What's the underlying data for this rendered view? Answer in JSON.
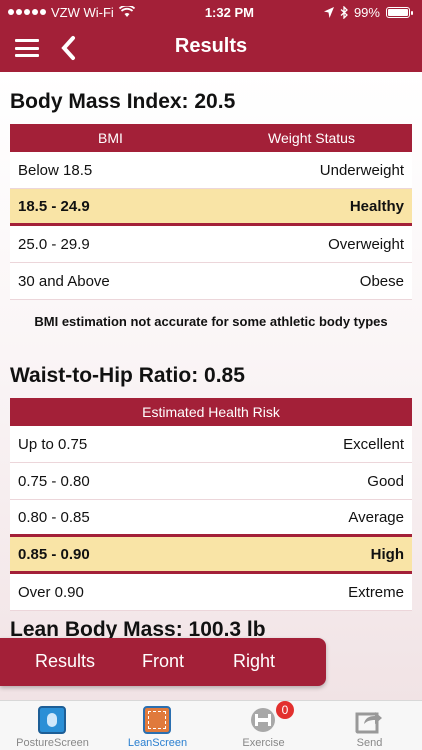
{
  "status_bar": {
    "carrier": "VZW Wi-Fi",
    "time": "1:32 PM",
    "battery": "99%"
  },
  "nav": {
    "title": "Results"
  },
  "bmi": {
    "title": "Body Mass Index: 20.5",
    "col_bmi": "BMI",
    "col_status": "Weight Status",
    "rows": [
      {
        "range": "Below 18.5",
        "status": "Underweight"
      },
      {
        "range": "18.5 - 24.9",
        "status": "Healthy"
      },
      {
        "range": "25.0 - 29.9",
        "status": "Overweight"
      },
      {
        "range": "30 and Above",
        "status": "Obese"
      }
    ],
    "note": "BMI estimation not accurate for some athletic body types"
  },
  "whr": {
    "title": "Waist-to-Hip Ratio: 0.85",
    "header": "Estimated Health Risk",
    "rows": [
      {
        "range": "Up to 0.75",
        "risk": "Excellent"
      },
      {
        "range": "0.75 - 0.80",
        "risk": "Good"
      },
      {
        "range": "0.80 - 0.85",
        "risk": "Average"
      },
      {
        "range": "0.85 - 0.90",
        "risk": "High"
      },
      {
        "range": "Over 0.90",
        "risk": "Extreme"
      }
    ]
  },
  "lean": {
    "title": "Lean Body Mass: 100.3 lb"
  },
  "segment": {
    "results": "Results",
    "front": "Front",
    "right": "Right"
  },
  "tabs": [
    {
      "label": "PostureScreen"
    },
    {
      "label": "LeanScreen"
    },
    {
      "label": "Exercise",
      "badge": "0"
    },
    {
      "label": "Send"
    }
  ]
}
